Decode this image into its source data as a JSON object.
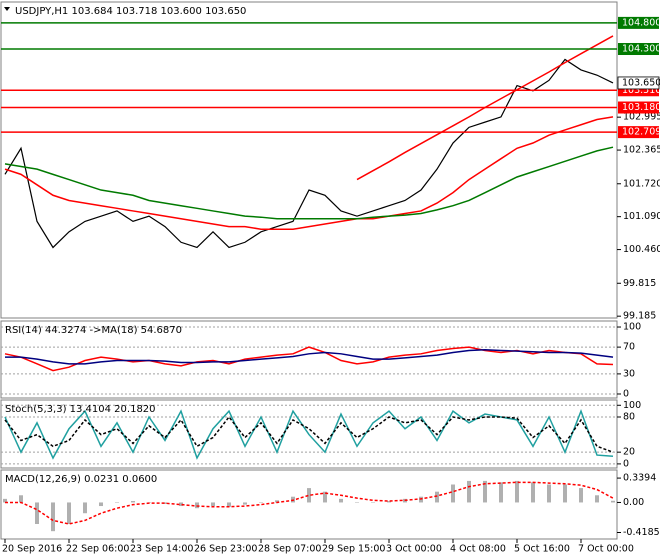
{
  "chart_data": [
    {
      "type": "line",
      "title": "USDJPY,H1  103.684 103.718 103.600 103.650",
      "ylim": [
        99.15,
        105.2
      ],
      "yticks": [
        {
          "value": 102.995,
          "label": "102.995"
        },
        102.365,
        {
          "value": 101.72,
          "label": "101.720"
        },
        {
          "value": 101.09,
          "label": "101.090"
        },
        {
          "value": 100.46,
          "label": "100.460"
        },
        99.815,
        99.185
      ],
      "levels": [
        {
          "value": 104.8,
          "label": "104.800",
          "color": "#007a00"
        },
        {
          "value": 104.3,
          "label": "104.300",
          "color": "#007a00"
        },
        {
          "value": 103.51,
          "label": "103.510",
          "color": "#ff0000"
        },
        {
          "value": 103.18,
          "label": "103.180",
          "color": "#ff0000"
        },
        {
          "value": 102.709,
          "label": "102.709",
          "color": "#ff0000"
        }
      ],
      "last_price": {
        "value": 103.65,
        "label": "103.650"
      },
      "series": [
        {
          "color": "#000000",
          "values": [
            101.9,
            102.4,
            101.0,
            100.5,
            100.8,
            101.0,
            101.1,
            101.2,
            101.0,
            101.1,
            100.9,
            100.6,
            100.5,
            100.8,
            100.5,
            100.6,
            100.8,
            100.9,
            101.0,
            101.6,
            101.5,
            101.2,
            101.1,
            101.2,
            101.3,
            101.4,
            101.6,
            102.0,
            102.5,
            102.8,
            102.9,
            103.0,
            103.6,
            103.5,
            103.7,
            104.1,
            103.9,
            103.8,
            103.65
          ]
        },
        {
          "color": "#ff0000",
          "values": [
            102.0,
            101.9,
            101.7,
            101.5,
            101.4,
            101.35,
            101.3,
            101.25,
            101.2,
            101.15,
            101.1,
            101.05,
            101.0,
            100.95,
            100.9,
            100.9,
            100.85,
            100.85,
            100.85,
            100.9,
            100.95,
            101.0,
            101.05,
            101.05,
            101.1,
            101.15,
            101.2,
            101.35,
            101.55,
            101.8,
            102.0,
            102.2,
            102.4,
            102.5,
            102.65,
            102.75,
            102.85,
            102.95,
            103.0
          ]
        },
        {
          "color": "#007a00",
          "values": [
            102.1,
            102.05,
            102.0,
            101.9,
            101.8,
            101.7,
            101.6,
            101.55,
            101.5,
            101.4,
            101.35,
            101.3,
            101.25,
            101.2,
            101.15,
            101.1,
            101.08,
            101.05,
            101.05,
            101.05,
            101.05,
            101.05,
            101.05,
            101.08,
            101.1,
            101.12,
            101.15,
            101.22,
            101.3,
            101.4,
            101.55,
            101.7,
            101.85,
            101.95,
            102.05,
            102.15,
            102.25,
            102.35,
            102.42
          ]
        },
        {
          "color": "#ff0000",
          "values": [
            null,
            null,
            null,
            null,
            null,
            null,
            null,
            null,
            null,
            null,
            null,
            null,
            null,
            null,
            null,
            null,
            null,
            null,
            null,
            null,
            null,
            null,
            101.8,
            101.97,
            102.14,
            102.32,
            102.49,
            102.66,
            102.83,
            103.0,
            103.18,
            103.35,
            103.52,
            103.69,
            103.86,
            104.04,
            104.21,
            104.38,
            104.55
          ]
        }
      ]
    },
    {
      "type": "line",
      "title": "RSI(14) 44.3274 ->MA(18) 54.6870",
      "ylim": [
        -6,
        109
      ],
      "yticks": [
        100,
        70,
        30,
        0
      ],
      "grid": true,
      "series": [
        {
          "color": "#ff0000",
          "values": [
            60,
            55,
            45,
            35,
            40,
            50,
            55,
            52,
            48,
            50,
            45,
            42,
            48,
            50,
            45,
            52,
            55,
            58,
            60,
            70,
            62,
            50,
            45,
            48,
            55,
            58,
            60,
            65,
            68,
            70,
            65,
            62,
            65,
            60,
            65,
            62,
            60,
            45,
            44
          ]
        },
        {
          "color": "#000080",
          "values": [
            55,
            55,
            52,
            48,
            45,
            45,
            48,
            50,
            50,
            50,
            49,
            47,
            47,
            48,
            48,
            50,
            52,
            54,
            56,
            60,
            62,
            60,
            56,
            52,
            52,
            54,
            56,
            58,
            62,
            65,
            66,
            65,
            64,
            63,
            62,
            62,
            61,
            58,
            55
          ]
        }
      ]
    },
    {
      "type": "line",
      "title": "Stoch(5,3,3) 13.4104 20.1820",
      "ylim": [
        -7,
        109
      ],
      "yticks": [
        100,
        80,
        20,
        0
      ],
      "grid": true,
      "series": [
        {
          "color": "#20a0a0",
          "values": [
            80,
            20,
            70,
            10,
            60,
            90,
            30,
            70,
            20,
            80,
            40,
            90,
            10,
            60,
            90,
            30,
            80,
            20,
            90,
            50,
            20,
            85,
            30,
            70,
            90,
            60,
            80,
            40,
            90,
            70,
            85,
            80,
            75,
            30,
            80,
            20,
            90,
            15,
            13
          ]
        },
        {
          "color": "#000000",
          "dash": true,
          "values": [
            75,
            40,
            50,
            30,
            40,
            75,
            50,
            60,
            35,
            65,
            45,
            75,
            30,
            45,
            80,
            45,
            70,
            35,
            75,
            60,
            35,
            70,
            45,
            60,
            80,
            70,
            75,
            50,
            80,
            75,
            80,
            80,
            78,
            45,
            65,
            35,
            75,
            30,
            20
          ]
        }
      ]
    },
    {
      "type": "bar",
      "title": "MACD(12,26,9) 0.0231 0.0600",
      "ylim": [
        -0.509,
        0.452
      ],
      "yticks": [
        0.3394,
        {
          "value": 0,
          "label": "0.00"
        },
        -0.4185
      ],
      "categories": [
        "20 Sep 2016",
        null,
        null,
        null,
        "22 Sep 06:00",
        null,
        null,
        null,
        "23 Sep 14:00",
        null,
        null,
        null,
        "26 Sep 23:00",
        null,
        null,
        null,
        "28 Sep 07:00",
        null,
        null,
        null,
        "29 Sep 15:00",
        null,
        null,
        null,
        "3 Oct 00:00",
        null,
        null,
        null,
        "4 Oct 08:00",
        null,
        null,
        null,
        "5 Oct 16:00",
        null,
        null,
        null,
        "7 Oct 00:00",
        null,
        null
      ],
      "series": [
        {
          "type": "bar",
          "color": "#b0b0b0",
          "values": [
            0.05,
            0.1,
            -0.3,
            -0.4,
            -0.3,
            -0.15,
            -0.05,
            0,
            0.02,
            0,
            -0.02,
            -0.05,
            -0.08,
            -0.05,
            -0.06,
            -0.03,
            0,
            0.03,
            0.08,
            0.2,
            0.15,
            0.05,
            0,
            0,
            0.02,
            0.05,
            0.08,
            0.15,
            0.25,
            0.3,
            0.3,
            0.28,
            0.3,
            0.28,
            0.25,
            0.25,
            0.2,
            0.1,
            0.0231
          ]
        },
        {
          "type": "line",
          "color": "#ff0000",
          "dash": true,
          "values": [
            0,
            0,
            -0.1,
            -0.25,
            -0.3,
            -0.25,
            -0.15,
            -0.08,
            -0.03,
            -0.01,
            -0.01,
            -0.03,
            -0.05,
            -0.06,
            -0.06,
            -0.05,
            -0.03,
            0,
            0.03,
            0.1,
            0.13,
            0.1,
            0.06,
            0.03,
            0.02,
            0.03,
            0.05,
            0.09,
            0.15,
            0.22,
            0.26,
            0.27,
            0.28,
            0.28,
            0.27,
            0.26,
            0.24,
            0.18,
            0.06
          ]
        }
      ]
    }
  ]
}
